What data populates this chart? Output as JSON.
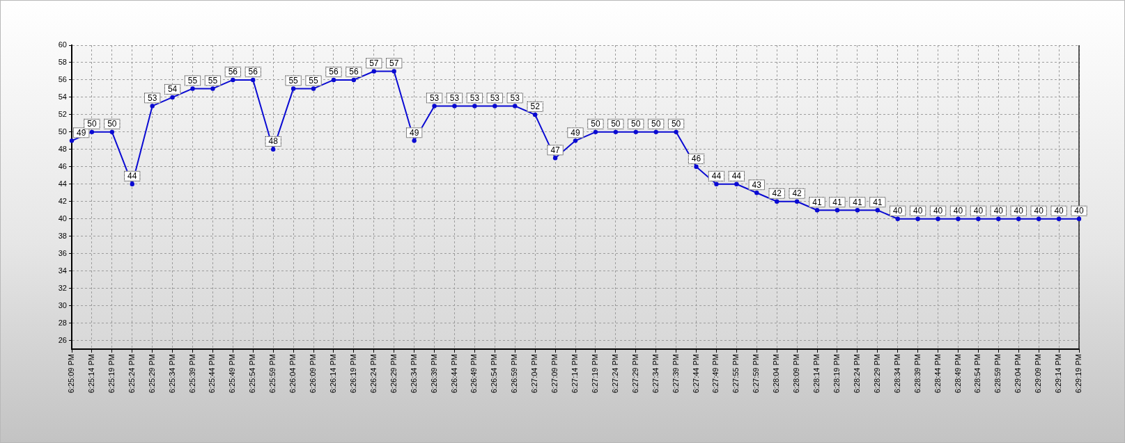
{
  "chart_data": {
    "type": "line",
    "categories": [
      "6:25:09 PM",
      "6:25:14 PM",
      "6:25:19 PM",
      "6:25:24 PM",
      "6:25:29 PM",
      "6:25:34 PM",
      "6:25:39 PM",
      "6:25:44 PM",
      "6:25:49 PM",
      "6:25:54 PM",
      "6:25:59 PM",
      "6:26:04 PM",
      "6:26:09 PM",
      "6:26:14 PM",
      "6:26:19 PM",
      "6:26:24 PM",
      "6:26:29 PM",
      "6:26:34 PM",
      "6:26:39 PM",
      "6:26:44 PM",
      "6:26:49 PM",
      "6:26:54 PM",
      "6:26:59 PM",
      "6:27:04 PM",
      "6:27:09 PM",
      "6:27:14 PM",
      "6:27:19 PM",
      "6:27:24 PM",
      "6:27:29 PM",
      "6:27:34 PM",
      "6:27:39 PM",
      "6:27:44 PM",
      "6:27:49 PM",
      "6:27:55 PM",
      "6:27:59 PM",
      "6:28:04 PM",
      "6:28:09 PM",
      "6:28:14 PM",
      "6:28:19 PM",
      "6:28:24 PM",
      "6:28:29 PM",
      "6:28:34 PM",
      "6:28:39 PM",
      "6:28:44 PM",
      "6:28:49 PM",
      "6:28:54 PM",
      "6:28:59 PM",
      "6:29:04 PM",
      "6:29:09 PM",
      "6:29:14 PM",
      "6:29:19 PM"
    ],
    "values": [
      49,
      50,
      50,
      44,
      53,
      54,
      55,
      55,
      56,
      56,
      48,
      55,
      55,
      56,
      56,
      57,
      57,
      49,
      53,
      53,
      53,
      53,
      53,
      52,
      47,
      49,
      50,
      50,
      50,
      50,
      50,
      46,
      44,
      44,
      43,
      42,
      42,
      41,
      41,
      41,
      41,
      40,
      40,
      40,
      40,
      40,
      40,
      40,
      40,
      40,
      40
    ],
    "color": "#0a0ad2",
    "ylim": [
      25,
      60
    ],
    "yticks": [
      26,
      28,
      30,
      32,
      34,
      36,
      38,
      40,
      42,
      44,
      46,
      48,
      50,
      52,
      54,
      56,
      58,
      60
    ],
    "grid": true,
    "marker": "circle",
    "line_style": "solid",
    "data_labels": true
  }
}
